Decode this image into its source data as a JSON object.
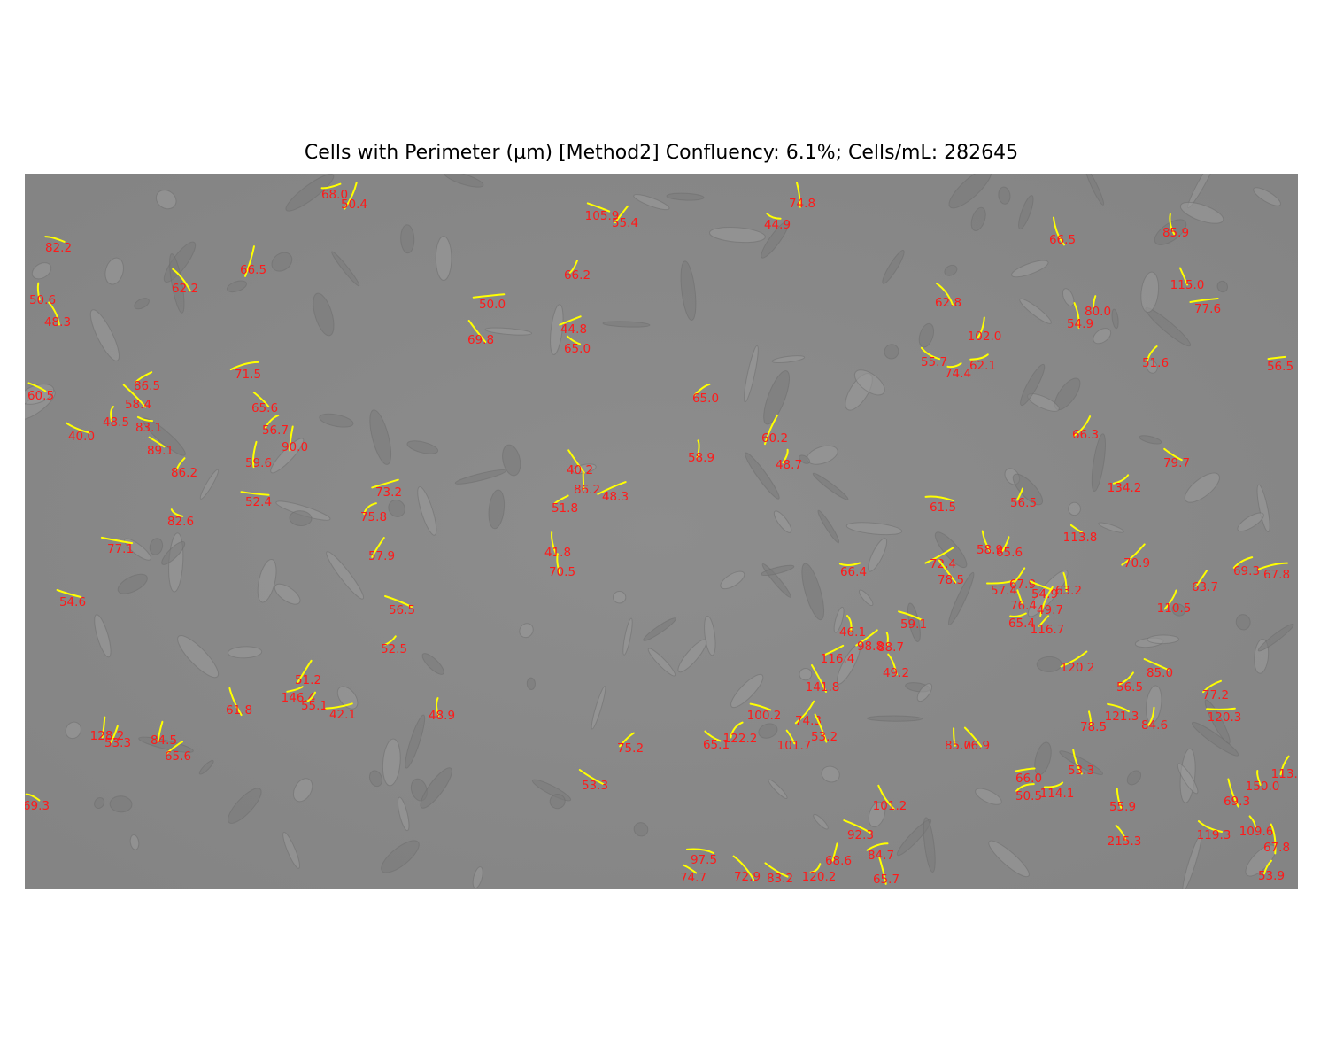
{
  "title": "Cells with Perimeter (µm) [Method2] Confluency: 6.1%; Cells/mL: 282645",
  "colors": {
    "background": "#ffffff",
    "micrograph_bg": "#8a8a8a",
    "contour": "#ffff00",
    "label": "#ff1a1a"
  },
  "cells": [
    {
      "perimeter": "68.0"
    },
    {
      "perimeter": "50.4"
    },
    {
      "perimeter": "105.9"
    },
    {
      "perimeter": "55.4"
    },
    {
      "perimeter": "74.8"
    },
    {
      "perimeter": "44.9"
    },
    {
      "perimeter": "66.5"
    },
    {
      "perimeter": "85.9"
    },
    {
      "perimeter": "82.2"
    },
    {
      "perimeter": "66.5"
    },
    {
      "perimeter": "66.2"
    },
    {
      "perimeter": "62.2"
    },
    {
      "perimeter": "50.6"
    },
    {
      "perimeter": "48.3"
    },
    {
      "perimeter": "50.0"
    },
    {
      "perimeter": "69.8"
    },
    {
      "perimeter": "44.8"
    },
    {
      "perimeter": "65.0"
    },
    {
      "perimeter": "62.8"
    },
    {
      "perimeter": "102.0"
    },
    {
      "perimeter": "80.0"
    },
    {
      "perimeter": "54.9"
    },
    {
      "perimeter": "115.0"
    },
    {
      "perimeter": "77.6"
    },
    {
      "perimeter": "55.7"
    },
    {
      "perimeter": "74.4"
    },
    {
      "perimeter": "62.1"
    },
    {
      "perimeter": "51.6"
    },
    {
      "perimeter": "56.5"
    },
    {
      "perimeter": "60.5"
    },
    {
      "perimeter": "86.5"
    },
    {
      "perimeter": "58.4"
    },
    {
      "perimeter": "48.5"
    },
    {
      "perimeter": "83.1"
    },
    {
      "perimeter": "40.0"
    },
    {
      "perimeter": "71.5"
    },
    {
      "perimeter": "65.6"
    },
    {
      "perimeter": "56.7"
    },
    {
      "perimeter": "90.0"
    },
    {
      "perimeter": "89.1"
    },
    {
      "perimeter": "86.2"
    },
    {
      "perimeter": "59.6"
    },
    {
      "perimeter": "65.0"
    },
    {
      "perimeter": "58.9"
    },
    {
      "perimeter": "60.2"
    },
    {
      "perimeter": "48.7"
    },
    {
      "perimeter": "66.3"
    },
    {
      "perimeter": "79.7"
    },
    {
      "perimeter": "40.2"
    },
    {
      "perimeter": "86.2"
    },
    {
      "perimeter": "48.3"
    },
    {
      "perimeter": "51.8"
    },
    {
      "perimeter": "73.2"
    },
    {
      "perimeter": "75.8"
    },
    {
      "perimeter": "52.4"
    },
    {
      "perimeter": "82.6"
    },
    {
      "perimeter": "134.2"
    },
    {
      "perimeter": "61.5"
    },
    {
      "perimeter": "56.5"
    },
    {
      "perimeter": "77.1"
    },
    {
      "perimeter": "113.8"
    },
    {
      "perimeter": "57.9"
    },
    {
      "perimeter": "41.8"
    },
    {
      "perimeter": "70.5"
    },
    {
      "perimeter": "58.9"
    },
    {
      "perimeter": "65.6"
    },
    {
      "perimeter": "72.4"
    },
    {
      "perimeter": "78.5"
    },
    {
      "perimeter": "70.9"
    },
    {
      "perimeter": "69.3"
    },
    {
      "perimeter": "67.8"
    },
    {
      "perimeter": "66.4"
    },
    {
      "perimeter": "57.4"
    },
    {
      "perimeter": "67.9"
    },
    {
      "perimeter": "54.9"
    },
    {
      "perimeter": "63.2"
    },
    {
      "perimeter": "63.7"
    },
    {
      "perimeter": "54.6"
    },
    {
      "perimeter": "76.4"
    },
    {
      "perimeter": "49.7"
    },
    {
      "perimeter": "110.5"
    },
    {
      "perimeter": "56.5"
    },
    {
      "perimeter": "65.4"
    },
    {
      "perimeter": "116.7"
    },
    {
      "perimeter": "59.1"
    },
    {
      "perimeter": "46.1"
    },
    {
      "perimeter": "98.8"
    },
    {
      "perimeter": "88.7"
    },
    {
      "perimeter": "52.5"
    },
    {
      "perimeter": "116.4"
    },
    {
      "perimeter": "120.2"
    },
    {
      "perimeter": "49.2"
    },
    {
      "perimeter": "85.0"
    },
    {
      "perimeter": "51.2"
    },
    {
      "perimeter": "141.8"
    },
    {
      "perimeter": "56.5"
    },
    {
      "perimeter": "77.2"
    },
    {
      "perimeter": "146.4"
    },
    {
      "perimeter": "55.1"
    },
    {
      "perimeter": "61.8"
    },
    {
      "perimeter": "42.1"
    },
    {
      "perimeter": "48.9"
    },
    {
      "perimeter": "100.2"
    },
    {
      "perimeter": "74.3"
    },
    {
      "perimeter": "121.3"
    },
    {
      "perimeter": "78.5"
    },
    {
      "perimeter": "84.6"
    },
    {
      "perimeter": "120.3"
    },
    {
      "perimeter": "128.2"
    },
    {
      "perimeter": "53.3"
    },
    {
      "perimeter": "84.5"
    },
    {
      "perimeter": "53.2"
    },
    {
      "perimeter": "122.2"
    },
    {
      "perimeter": "65.1"
    },
    {
      "perimeter": "101.7"
    },
    {
      "perimeter": "85.0"
    },
    {
      "perimeter": "76.9"
    },
    {
      "perimeter": "65.6"
    },
    {
      "perimeter": "75.2"
    },
    {
      "perimeter": "113.4"
    },
    {
      "perimeter": "53.3"
    },
    {
      "perimeter": "66.0"
    },
    {
      "perimeter": "53.3"
    },
    {
      "perimeter": "150.0"
    },
    {
      "perimeter": "69.3"
    },
    {
      "perimeter": "50.5"
    },
    {
      "perimeter": "114.1"
    },
    {
      "perimeter": "101.2"
    },
    {
      "perimeter": "55.9"
    },
    {
      "perimeter": "69.3"
    },
    {
      "perimeter": "92.3"
    },
    {
      "perimeter": "109.6"
    },
    {
      "perimeter": "119.3"
    },
    {
      "perimeter": "215.3"
    },
    {
      "perimeter": "97.5"
    },
    {
      "perimeter": "68.6"
    },
    {
      "perimeter": "84.7"
    },
    {
      "perimeter": "67.8"
    },
    {
      "perimeter": "74.7"
    },
    {
      "perimeter": "72.9"
    },
    {
      "perimeter": "83.2"
    },
    {
      "perimeter": "120.2"
    },
    {
      "perimeter": "65.7"
    },
    {
      "perimeter": "53.9"
    }
  ]
}
